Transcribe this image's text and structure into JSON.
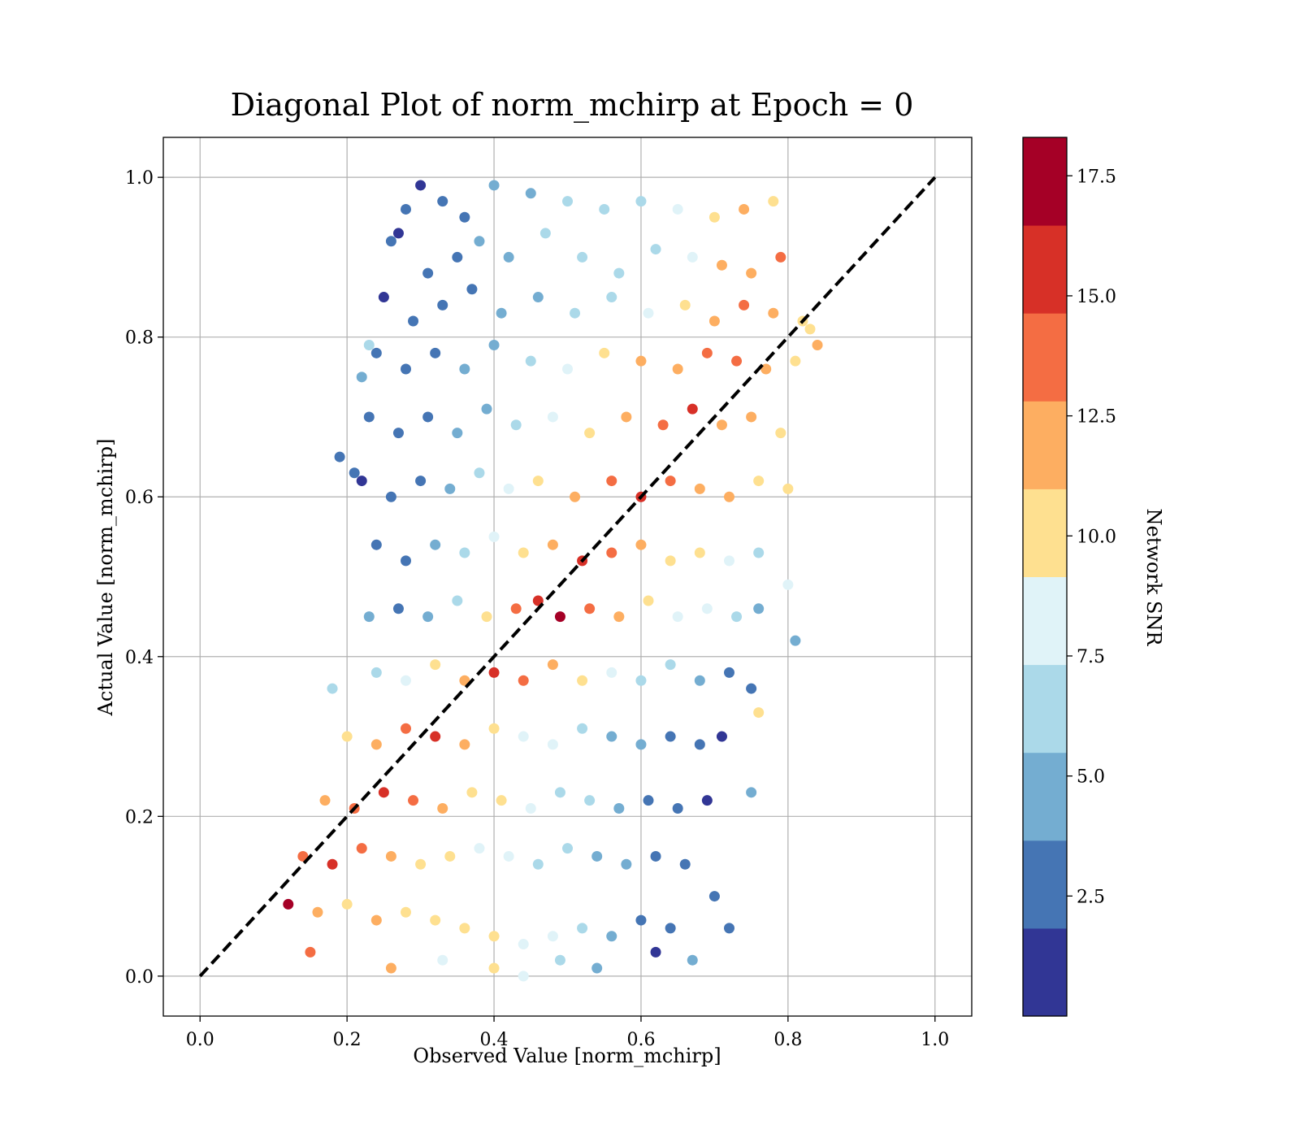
{
  "chart_data": {
    "type": "scatter",
    "title": "Diagonal Plot of norm_mchirp at Epoch = 0",
    "xlabel": "Observed Value [norm_mchirp]",
    "ylabel": "Actual Value [norm_mchirp]",
    "xlim": [
      -0.05,
      1.05
    ],
    "ylim": [
      -0.05,
      1.05
    ],
    "xticks": [
      "0.0",
      "0.2",
      "0.4",
      "0.6",
      "0.8",
      "1.0"
    ],
    "yticks": [
      "0.0",
      "0.2",
      "0.4",
      "0.6",
      "0.8",
      "1.0"
    ],
    "grid": true,
    "reference_line": {
      "style": "dashed",
      "color": "#000000",
      "x": [
        0.0,
        1.0
      ],
      "y": [
        0.0,
        1.0
      ]
    },
    "colorbar": {
      "label": "Network SNR",
      "range": [
        0.0,
        18.3
      ],
      "ticks": [
        "2.5",
        "5.0",
        "7.5",
        "10.0",
        "12.5",
        "15.0",
        "17.5"
      ],
      "colors": [
        "#313695",
        "#4575b4",
        "#74add1",
        "#abd9e9",
        "#e0f3f8",
        "#fee090",
        "#fdae61",
        "#f46d43",
        "#d73027",
        "#a50026"
      ]
    },
    "points": [
      [
        0.3,
        0.99,
        1.5
      ],
      [
        0.33,
        0.97,
        2.2
      ],
      [
        0.36,
        0.95,
        2.8
      ],
      [
        0.4,
        0.99,
        4.5
      ],
      [
        0.45,
        0.98,
        5.2
      ],
      [
        0.5,
        0.97,
        5.6
      ],
      [
        0.55,
        0.96,
        6.1
      ],
      [
        0.6,
        0.97,
        6.4
      ],
      [
        0.65,
        0.96,
        8.1
      ],
      [
        0.7,
        0.95,
        9.8
      ],
      [
        0.74,
        0.96,
        11.8
      ],
      [
        0.78,
        0.97,
        10.2
      ],
      [
        0.27,
        0.93,
        1.8
      ],
      [
        0.31,
        0.88,
        2.0
      ],
      [
        0.35,
        0.9,
        3.1
      ],
      [
        0.38,
        0.92,
        3.9
      ],
      [
        0.42,
        0.9,
        4.9
      ],
      [
        0.47,
        0.93,
        5.7
      ],
      [
        0.52,
        0.9,
        6.5
      ],
      [
        0.57,
        0.88,
        6.9
      ],
      [
        0.62,
        0.91,
        7.2
      ],
      [
        0.67,
        0.9,
        9.0
      ],
      [
        0.71,
        0.89,
        11.3
      ],
      [
        0.75,
        0.88,
        12.6
      ],
      [
        0.79,
        0.9,
        13.2
      ],
      [
        0.25,
        0.85,
        1.2
      ],
      [
        0.29,
        0.82,
        2.4
      ],
      [
        0.33,
        0.84,
        3.0
      ],
      [
        0.37,
        0.86,
        3.6
      ],
      [
        0.41,
        0.83,
        4.7
      ],
      [
        0.46,
        0.85,
        5.4
      ],
      [
        0.51,
        0.83,
        6.2
      ],
      [
        0.56,
        0.85,
        6.6
      ],
      [
        0.61,
        0.83,
        7.8
      ],
      [
        0.66,
        0.84,
        10.1
      ],
      [
        0.7,
        0.82,
        12.1
      ],
      [
        0.74,
        0.84,
        13.8
      ],
      [
        0.78,
        0.83,
        11.2
      ],
      [
        0.82,
        0.82,
        10.4
      ],
      [
        0.24,
        0.78,
        1.9
      ],
      [
        0.28,
        0.76,
        2.3
      ],
      [
        0.32,
        0.78,
        2.9
      ],
      [
        0.36,
        0.76,
        4.0
      ],
      [
        0.4,
        0.79,
        5.1
      ],
      [
        0.45,
        0.77,
        6.0
      ],
      [
        0.5,
        0.76,
        8.2
      ],
      [
        0.55,
        0.78,
        9.4
      ],
      [
        0.6,
        0.77,
        11.0
      ],
      [
        0.65,
        0.76,
        12.4
      ],
      [
        0.69,
        0.78,
        14.2
      ],
      [
        0.73,
        0.77,
        13.0
      ],
      [
        0.77,
        0.76,
        12.0
      ],
      [
        0.81,
        0.77,
        10.6
      ],
      [
        0.23,
        0.7,
        2.1
      ],
      [
        0.27,
        0.68,
        2.6
      ],
      [
        0.31,
        0.7,
        3.2
      ],
      [
        0.35,
        0.68,
        4.3
      ],
      [
        0.39,
        0.71,
        5.0
      ],
      [
        0.43,
        0.69,
        7.0
      ],
      [
        0.48,
        0.7,
        9.1
      ],
      [
        0.53,
        0.68,
        10.7
      ],
      [
        0.58,
        0.7,
        12.2
      ],
      [
        0.63,
        0.69,
        13.4
      ],
      [
        0.67,
        0.71,
        15.1
      ],
      [
        0.71,
        0.69,
        12.8
      ],
      [
        0.75,
        0.7,
        11.7
      ],
      [
        0.79,
        0.68,
        10.3
      ],
      [
        0.22,
        0.62,
        1.4
      ],
      [
        0.26,
        0.6,
        2.7
      ],
      [
        0.3,
        0.62,
        3.4
      ],
      [
        0.34,
        0.61,
        4.6
      ],
      [
        0.38,
        0.63,
        6.3
      ],
      [
        0.42,
        0.61,
        8.0
      ],
      [
        0.46,
        0.62,
        9.9
      ],
      [
        0.51,
        0.6,
        11.9
      ],
      [
        0.56,
        0.62,
        13.6
      ],
      [
        0.6,
        0.6,
        15.6
      ],
      [
        0.64,
        0.62,
        14.0
      ],
      [
        0.68,
        0.61,
        12.3
      ],
      [
        0.72,
        0.6,
        11.1
      ],
      [
        0.76,
        0.62,
        10.0
      ],
      [
        0.8,
        0.61,
        9.2
      ],
      [
        0.24,
        0.54,
        2.5
      ],
      [
        0.28,
        0.52,
        3.3
      ],
      [
        0.32,
        0.54,
        4.8
      ],
      [
        0.36,
        0.53,
        6.7
      ],
      [
        0.4,
        0.55,
        8.6
      ],
      [
        0.44,
        0.53,
        10.5
      ],
      [
        0.48,
        0.54,
        12.7
      ],
      [
        0.52,
        0.52,
        14.8
      ],
      [
        0.56,
        0.53,
        13.1
      ],
      [
        0.6,
        0.54,
        11.6
      ],
      [
        0.64,
        0.52,
        10.8
      ],
      [
        0.68,
        0.53,
        9.6
      ],
      [
        0.72,
        0.52,
        8.4
      ],
      [
        0.76,
        0.53,
        7.3
      ],
      [
        0.27,
        0.46,
        3.0
      ],
      [
        0.31,
        0.45,
        4.1
      ],
      [
        0.35,
        0.47,
        7.1
      ],
      [
        0.39,
        0.45,
        9.5
      ],
      [
        0.43,
        0.46,
        12.9
      ],
      [
        0.46,
        0.47,
        15.8
      ],
      [
        0.49,
        0.45,
        16.6
      ],
      [
        0.53,
        0.46,
        13.5
      ],
      [
        0.57,
        0.45,
        11.4
      ],
      [
        0.61,
        0.47,
        10.2
      ],
      [
        0.65,
        0.45,
        8.8
      ],
      [
        0.69,
        0.46,
        7.5
      ],
      [
        0.73,
        0.45,
        6.0
      ],
      [
        0.76,
        0.46,
        4.9
      ],
      [
        0.24,
        0.38,
        6.8
      ],
      [
        0.28,
        0.37,
        8.5
      ],
      [
        0.32,
        0.39,
        10.9
      ],
      [
        0.36,
        0.37,
        12.5
      ],
      [
        0.4,
        0.38,
        15.3
      ],
      [
        0.44,
        0.37,
        13.9
      ],
      [
        0.48,
        0.39,
        11.5
      ],
      [
        0.52,
        0.37,
        9.7
      ],
      [
        0.56,
        0.38,
        8.3
      ],
      [
        0.6,
        0.37,
        6.9
      ],
      [
        0.64,
        0.39,
        5.5
      ],
      [
        0.68,
        0.37,
        4.2
      ],
      [
        0.72,
        0.38,
        3.5
      ],
      [
        0.75,
        0.36,
        2.6
      ],
      [
        0.2,
        0.3,
        9.6
      ],
      [
        0.24,
        0.29,
        11.8
      ],
      [
        0.28,
        0.31,
        13.7
      ],
      [
        0.32,
        0.3,
        15.9
      ],
      [
        0.36,
        0.29,
        12.6
      ],
      [
        0.4,
        0.31,
        10.8
      ],
      [
        0.44,
        0.3,
        9.0
      ],
      [
        0.48,
        0.29,
        7.7
      ],
      [
        0.52,
        0.31,
        6.6
      ],
      [
        0.56,
        0.3,
        5.3
      ],
      [
        0.6,
        0.29,
        4.4
      ],
      [
        0.64,
        0.3,
        3.3
      ],
      [
        0.68,
        0.29,
        2.4
      ],
      [
        0.71,
        0.3,
        1.6
      ],
      [
        0.17,
        0.22,
        11.2
      ],
      [
        0.21,
        0.21,
        14.5
      ],
      [
        0.25,
        0.23,
        16.3
      ],
      [
        0.29,
        0.22,
        13.3
      ],
      [
        0.33,
        0.21,
        11.6
      ],
      [
        0.37,
        0.23,
        10.3
      ],
      [
        0.41,
        0.22,
        9.3
      ],
      [
        0.45,
        0.21,
        8.1
      ],
      [
        0.49,
        0.23,
        6.8
      ],
      [
        0.53,
        0.22,
        5.6
      ],
      [
        0.57,
        0.21,
        4.5
      ],
      [
        0.61,
        0.22,
        3.4
      ],
      [
        0.65,
        0.21,
        2.7
      ],
      [
        0.69,
        0.22,
        1.7
      ],
      [
        0.14,
        0.15,
        12.9
      ],
      [
        0.18,
        0.14,
        15.4
      ],
      [
        0.22,
        0.16,
        13.0
      ],
      [
        0.26,
        0.15,
        11.4
      ],
      [
        0.3,
        0.14,
        10.6
      ],
      [
        0.34,
        0.15,
        9.8
      ],
      [
        0.38,
        0.16,
        9.1
      ],
      [
        0.42,
        0.15,
        8.4
      ],
      [
        0.46,
        0.14,
        7.2
      ],
      [
        0.5,
        0.16,
        6.3
      ],
      [
        0.54,
        0.15,
        5.0
      ],
      [
        0.58,
        0.14,
        3.8
      ],
      [
        0.62,
        0.15,
        2.9
      ],
      [
        0.66,
        0.14,
        2.1
      ],
      [
        0.12,
        0.09,
        16.8
      ],
      [
        0.16,
        0.08,
        12.2
      ],
      [
        0.2,
        0.09,
        10.9
      ],
      [
        0.24,
        0.07,
        11.0
      ],
      [
        0.28,
        0.08,
        10.1
      ],
      [
        0.32,
        0.07,
        9.4
      ],
      [
        0.36,
        0.06,
        9.9
      ],
      [
        0.4,
        0.05,
        9.2
      ],
      [
        0.44,
        0.04,
        8.7
      ],
      [
        0.48,
        0.05,
        7.6
      ],
      [
        0.52,
        0.06,
        6.4
      ],
      [
        0.56,
        0.05,
        4.6
      ],
      [
        0.6,
        0.07,
        3.2
      ],
      [
        0.64,
        0.06,
        2.3
      ],
      [
        0.7,
        0.1,
        1.9
      ],
      [
        0.15,
        0.03,
        14.1
      ],
      [
        0.26,
        0.01,
        12.5
      ],
      [
        0.33,
        0.02,
        8.9
      ],
      [
        0.4,
        0.01,
        10.4
      ],
      [
        0.44,
        0.0,
        8.2
      ],
      [
        0.49,
        0.02,
        6.0
      ],
      [
        0.54,
        0.01,
        3.7
      ],
      [
        0.62,
        0.03,
        1.8
      ],
      [
        0.67,
        0.02,
        4.7
      ],
      [
        0.72,
        0.06,
        3.1
      ],
      [
        0.21,
        0.63,
        2.0
      ],
      [
        0.19,
        0.65,
        3.6
      ],
      [
        0.22,
        0.75,
        4.1
      ],
      [
        0.23,
        0.45,
        5.2
      ],
      [
        0.18,
        0.36,
        6.3
      ],
      [
        0.23,
        0.79,
        6.7
      ],
      [
        0.28,
        0.96,
        2.4
      ],
      [
        0.26,
        0.92,
        3.1
      ],
      [
        0.75,
        0.23,
        5.2
      ],
      [
        0.76,
        0.33,
        9.9
      ],
      [
        0.81,
        0.42,
        4.4
      ],
      [
        0.8,
        0.49,
        7.9
      ],
      [
        0.83,
        0.81,
        10.7
      ],
      [
        0.84,
        0.79,
        11.7
      ]
    ]
  }
}
